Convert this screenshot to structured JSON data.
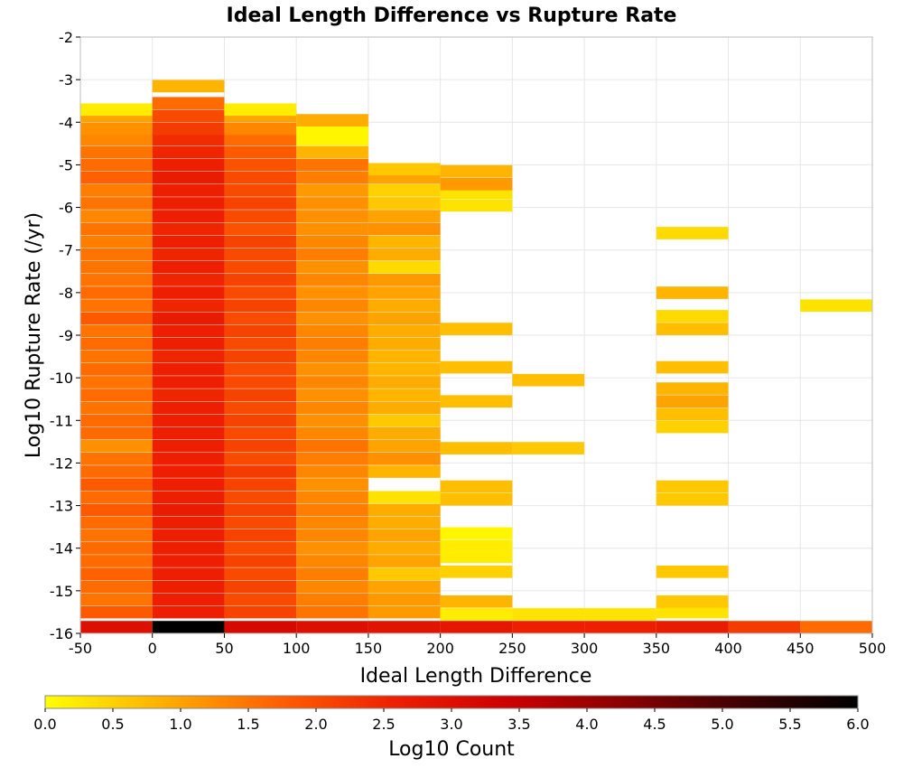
{
  "chart_data": {
    "type": "heatmap",
    "title": "Ideal Length Difference vs Rupture Rate",
    "xlabel": "Ideal Length Difference",
    "ylabel": "Log10 Rupture Rate (/yr)",
    "xlim": [
      -50,
      500
    ],
    "ylim": [
      -16,
      -2
    ],
    "xticks": [
      "-50",
      "0",
      "50",
      "100",
      "150",
      "200",
      "250",
      "300",
      "350",
      "400",
      "450",
      "500"
    ],
    "yticks": [
      "-2",
      "-3",
      "-4",
      "-5",
      "-6",
      "-7",
      "-8",
      "-9",
      "-10",
      "-11",
      "-12",
      "-13",
      "-14",
      "-15",
      "-16"
    ],
    "x_bin_width": 50,
    "y_bin_height": 0.284,
    "grid": true,
    "colorscale": {
      "label": "Log10 Count",
      "min": 0.0,
      "max": 6.0,
      "ticks": [
        "0.0",
        "0.5",
        "1.0",
        "1.5",
        "2.0",
        "2.5",
        "3.0",
        "3.5",
        "4.0",
        "4.5",
        "5.0",
        "5.5",
        "6.0"
      ],
      "colors": [
        "#ffff00",
        "#ffb000",
        "#ff6000",
        "#ee2000",
        "#cc0000",
        "#880000",
        "#400000",
        "#000000"
      ]
    },
    "columns": [
      {
        "x": -25,
        "cells": [
          [
            -15.85,
            3.0
          ],
          [
            -15.5,
            1.8
          ],
          [
            -15.2,
            1.5
          ],
          [
            -14.9,
            1.6
          ],
          [
            -14.6,
            1.7
          ],
          [
            -14.3,
            1.6
          ],
          [
            -14.0,
            1.6
          ],
          [
            -13.7,
            1.5
          ],
          [
            -13.4,
            1.6
          ],
          [
            -13.1,
            1.8
          ],
          [
            -12.8,
            1.6
          ],
          [
            -12.5,
            1.8
          ],
          [
            -12.2,
            1.6
          ],
          [
            -11.9,
            1.5
          ],
          [
            -11.6,
            1.2
          ],
          [
            -11.3,
            1.6
          ],
          [
            -11.0,
            1.6
          ],
          [
            -10.7,
            1.5
          ],
          [
            -10.4,
            1.6
          ],
          [
            -10.1,
            1.5
          ],
          [
            -9.8,
            1.6
          ],
          [
            -9.5,
            1.5
          ],
          [
            -9.2,
            1.6
          ],
          [
            -8.9,
            1.5
          ],
          [
            -8.6,
            1.8
          ],
          [
            -8.3,
            1.5
          ],
          [
            -8.0,
            1.6
          ],
          [
            -7.7,
            1.5
          ],
          [
            -7.4,
            1.5
          ],
          [
            -7.1,
            1.5
          ],
          [
            -6.8,
            1.4
          ],
          [
            -6.5,
            1.5
          ],
          [
            -6.2,
            1.3
          ],
          [
            -5.9,
            1.5
          ],
          [
            -5.6,
            1.4
          ],
          [
            -5.3,
            1.7
          ],
          [
            -5.0,
            1.6
          ],
          [
            -4.7,
            1.5
          ],
          [
            -4.4,
            1.3
          ],
          [
            -4.15,
            1.2
          ],
          [
            -3.85,
            1.0
          ],
          [
            -3.7,
            0.2
          ]
        ]
      },
      {
        "x": 25,
        "cells": [
          [
            -15.85,
            6.0
          ],
          [
            -15.5,
            2.6
          ],
          [
            -15.2,
            2.6
          ],
          [
            -14.9,
            2.6
          ],
          [
            -14.6,
            2.6
          ],
          [
            -14.3,
            2.6
          ],
          [
            -14.0,
            2.6
          ],
          [
            -13.7,
            2.6
          ],
          [
            -13.4,
            2.6
          ],
          [
            -13.1,
            2.7
          ],
          [
            -12.8,
            2.6
          ],
          [
            -12.5,
            2.6
          ],
          [
            -12.2,
            2.6
          ],
          [
            -11.9,
            2.6
          ],
          [
            -11.6,
            2.6
          ],
          [
            -11.3,
            2.6
          ],
          [
            -11.0,
            2.6
          ],
          [
            -10.7,
            2.6
          ],
          [
            -10.4,
            2.5
          ],
          [
            -10.1,
            2.6
          ],
          [
            -9.8,
            2.6
          ],
          [
            -9.5,
            2.5
          ],
          [
            -9.2,
            2.6
          ],
          [
            -8.9,
            2.6
          ],
          [
            -8.6,
            2.7
          ],
          [
            -8.3,
            2.5
          ],
          [
            -8.0,
            2.6
          ],
          [
            -7.7,
            2.5
          ],
          [
            -7.4,
            2.6
          ],
          [
            -7.1,
            2.5
          ],
          [
            -6.8,
            2.6
          ],
          [
            -6.5,
            2.5
          ],
          [
            -6.2,
            2.6
          ],
          [
            -5.9,
            2.6
          ],
          [
            -5.6,
            2.6
          ],
          [
            -5.3,
            2.7
          ],
          [
            -5.0,
            2.6
          ],
          [
            -4.7,
            2.5
          ],
          [
            -4.4,
            2.4
          ],
          [
            -4.15,
            2.2
          ],
          [
            -3.85,
            2.0
          ],
          [
            -3.55,
            1.6
          ],
          [
            -3.15,
            0.8
          ]
        ]
      },
      {
        "x": 75,
        "cells": [
          [
            -15.85,
            3.2
          ],
          [
            -15.5,
            2.1
          ],
          [
            -15.2,
            2.0
          ],
          [
            -14.9,
            2.1
          ],
          [
            -14.6,
            2.0
          ],
          [
            -14.3,
            2.1
          ],
          [
            -14.0,
            2.0
          ],
          [
            -13.7,
            2.1
          ],
          [
            -13.4,
            2.0
          ],
          [
            -13.1,
            2.1
          ],
          [
            -12.8,
            2.0
          ],
          [
            -12.5,
            2.1
          ],
          [
            -12.2,
            2.2
          ],
          [
            -11.9,
            2.0
          ],
          [
            -11.6,
            2.1
          ],
          [
            -11.3,
            2.0
          ],
          [
            -11.0,
            2.1
          ],
          [
            -10.7,
            2.0
          ],
          [
            -10.4,
            2.1
          ],
          [
            -10.1,
            2.0
          ],
          [
            -9.8,
            2.0
          ],
          [
            -9.5,
            2.1
          ],
          [
            -9.2,
            2.0
          ],
          [
            -8.9,
            2.1
          ],
          [
            -8.6,
            2.0
          ],
          [
            -8.3,
            2.1
          ],
          [
            -8.0,
            2.0
          ],
          [
            -7.7,
            2.1
          ],
          [
            -7.4,
            2.0
          ],
          [
            -7.1,
            2.0
          ],
          [
            -6.8,
            2.1
          ],
          [
            -6.5,
            1.9
          ],
          [
            -6.2,
            2.0
          ],
          [
            -5.9,
            2.1
          ],
          [
            -5.6,
            2.0
          ],
          [
            -5.3,
            2.0
          ],
          [
            -5.0,
            1.9
          ],
          [
            -4.7,
            1.8
          ],
          [
            -4.4,
            1.6
          ],
          [
            -4.15,
            1.3
          ],
          [
            -3.85,
            1.0
          ],
          [
            -3.7,
            0.2
          ]
        ]
      },
      {
        "x": 125,
        "cells": [
          [
            -15.85,
            3.0
          ],
          [
            -15.5,
            1.5
          ],
          [
            -15.2,
            1.4
          ],
          [
            -14.9,
            1.3
          ],
          [
            -14.6,
            1.4
          ],
          [
            -14.3,
            1.3
          ],
          [
            -14.0,
            1.2
          ],
          [
            -13.7,
            1.3
          ],
          [
            -13.4,
            1.3
          ],
          [
            -13.1,
            1.4
          ],
          [
            -12.8,
            1.3
          ],
          [
            -12.5,
            1.2
          ],
          [
            -12.2,
            1.3
          ],
          [
            -11.9,
            1.4
          ],
          [
            -11.6,
            1.5
          ],
          [
            -11.3,
            1.3
          ],
          [
            -11.0,
            1.2
          ],
          [
            -10.7,
            1.3
          ],
          [
            -10.4,
            1.2
          ],
          [
            -10.1,
            1.3
          ],
          [
            -9.8,
            1.2
          ],
          [
            -9.5,
            1.3
          ],
          [
            -9.2,
            1.4
          ],
          [
            -8.9,
            1.3
          ],
          [
            -8.6,
            1.2
          ],
          [
            -8.3,
            1.3
          ],
          [
            -8.0,
            1.2
          ],
          [
            -7.7,
            1.3
          ],
          [
            -7.4,
            1.2
          ],
          [
            -7.1,
            1.4
          ],
          [
            -6.8,
            1.3
          ],
          [
            -6.5,
            1.2
          ],
          [
            -6.2,
            1.2
          ],
          [
            -5.9,
            1.2
          ],
          [
            -5.6,
            1.1
          ],
          [
            -5.3,
            1.4
          ],
          [
            -5.0,
            1.5
          ],
          [
            -4.7,
            0.8
          ],
          [
            -4.4,
            0.1
          ],
          [
            -4.15,
            0.1
          ],
          [
            -3.95,
            0.9
          ]
        ]
      },
      {
        "x": 175,
        "cells": [
          [
            -15.85,
            2.9
          ],
          [
            -15.5,
            1.1
          ],
          [
            -15.2,
            1.1
          ],
          [
            -14.9,
            1.0
          ],
          [
            -14.6,
            0.6
          ],
          [
            -14.3,
            1.0
          ],
          [
            -14.0,
            0.9
          ],
          [
            -13.7,
            1.0
          ],
          [
            -13.4,
            0.9
          ],
          [
            -13.1,
            0.9
          ],
          [
            -12.8,
            0.3
          ],
          [
            -12.2,
            0.8
          ],
          [
            -11.9,
            1.2
          ],
          [
            -11.6,
            1.0
          ],
          [
            -11.3,
            0.9
          ],
          [
            -11.0,
            0.6
          ],
          [
            -10.7,
            0.9
          ],
          [
            -10.4,
            0.8
          ],
          [
            -10.1,
            0.9
          ],
          [
            -9.8,
            0.8
          ],
          [
            -9.5,
            0.8
          ],
          [
            -9.2,
            0.9
          ],
          [
            -8.9,
            0.9
          ],
          [
            -8.6,
            1.0
          ],
          [
            -8.3,
            0.9
          ],
          [
            -8.0,
            1.0
          ],
          [
            -7.7,
            1.1
          ],
          [
            -7.4,
            0.4
          ],
          [
            -7.1,
            0.9
          ],
          [
            -6.8,
            0.8
          ],
          [
            -6.5,
            1.2
          ],
          [
            -6.2,
            1.0
          ],
          [
            -5.9,
            0.6
          ],
          [
            -5.6,
            0.5
          ],
          [
            -5.3,
            1.0
          ],
          [
            -5.1,
            0.6
          ]
        ]
      },
      {
        "x": 225,
        "cells": [
          [
            -15.85,
            2.8
          ],
          [
            -15.55,
            0.2
          ],
          [
            -15.25,
            0.8
          ],
          [
            -14.55,
            0.5
          ],
          [
            -14.2,
            0.2
          ],
          [
            -13.95,
            0.2
          ],
          [
            -13.65,
            0.1
          ],
          [
            -12.85,
            0.7
          ],
          [
            -12.55,
            0.7
          ],
          [
            -11.65,
            0.7
          ],
          [
            -10.55,
            0.7
          ],
          [
            -9.75,
            0.7
          ],
          [
            -8.85,
            0.7
          ],
          [
            -5.95,
            0.3
          ],
          [
            -5.65,
            0.3
          ],
          [
            -5.45,
            1.1
          ],
          [
            -5.15,
            0.8
          ]
        ]
      },
      {
        "x": 275,
        "cells": [
          [
            -15.85,
            2.6
          ],
          [
            -15.55,
            0.3
          ],
          [
            -11.65,
            0.6
          ],
          [
            -10.05,
            0.7
          ]
        ]
      },
      {
        "x": 325,
        "cells": [
          [
            -15.85,
            2.6
          ],
          [
            -15.55,
            0.3
          ]
        ]
      },
      {
        "x": 375,
        "cells": [
          [
            -15.85,
            2.7
          ],
          [
            -15.5,
            0.3
          ],
          [
            -15.25,
            0.6
          ],
          [
            -14.55,
            0.6
          ],
          [
            -12.85,
            0.6
          ],
          [
            -12.55,
            0.6
          ],
          [
            -11.15,
            0.5
          ],
          [
            -10.85,
            0.7
          ],
          [
            -10.55,
            1.0
          ],
          [
            -10.25,
            0.8
          ],
          [
            -9.75,
            0.7
          ],
          [
            -8.85,
            0.7
          ],
          [
            -8.55,
            0.4
          ],
          [
            -8.0,
            0.8
          ],
          [
            -6.6,
            0.4
          ]
        ]
      },
      {
        "x": 425,
        "cells": [
          [
            -15.85,
            2.2
          ]
        ]
      },
      {
        "x": 475,
        "cells": [
          [
            -15.85,
            1.6
          ],
          [
            -8.3,
            0.3
          ]
        ]
      }
    ]
  }
}
